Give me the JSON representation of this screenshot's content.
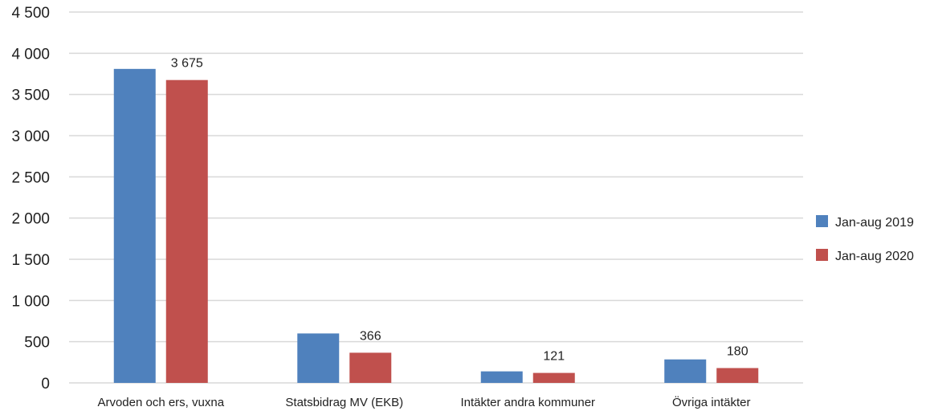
{
  "chart_data": {
    "type": "bar",
    "categories": [
      "Arvoden och ers, vuxna",
      "Statsbidrag MV (EKB)",
      "Intäkter andra kommuner",
      "Övriga intäkter"
    ],
    "series": [
      {
        "name": "Jan-aug 2019",
        "values": [
          3810,
          600,
          140,
          285
        ],
        "color": "#4f81bd",
        "data_labels": [
          "",
          "",
          "",
          ""
        ]
      },
      {
        "name": "Jan-aug 2020",
        "values": [
          3675,
          366,
          121,
          180
        ],
        "color": "#c0504d",
        "data_labels": [
          "3 675",
          "366",
          "121",
          "180"
        ]
      }
    ],
    "y_ticks": [
      "0",
      "500",
      "1 000",
      "1 500",
      "2 000",
      "2 500",
      "3 000",
      "3 500",
      "4 000",
      "4 500"
    ],
    "ylim": [
      0,
      4500
    ],
    "grid": true,
    "legend_position": "right"
  }
}
